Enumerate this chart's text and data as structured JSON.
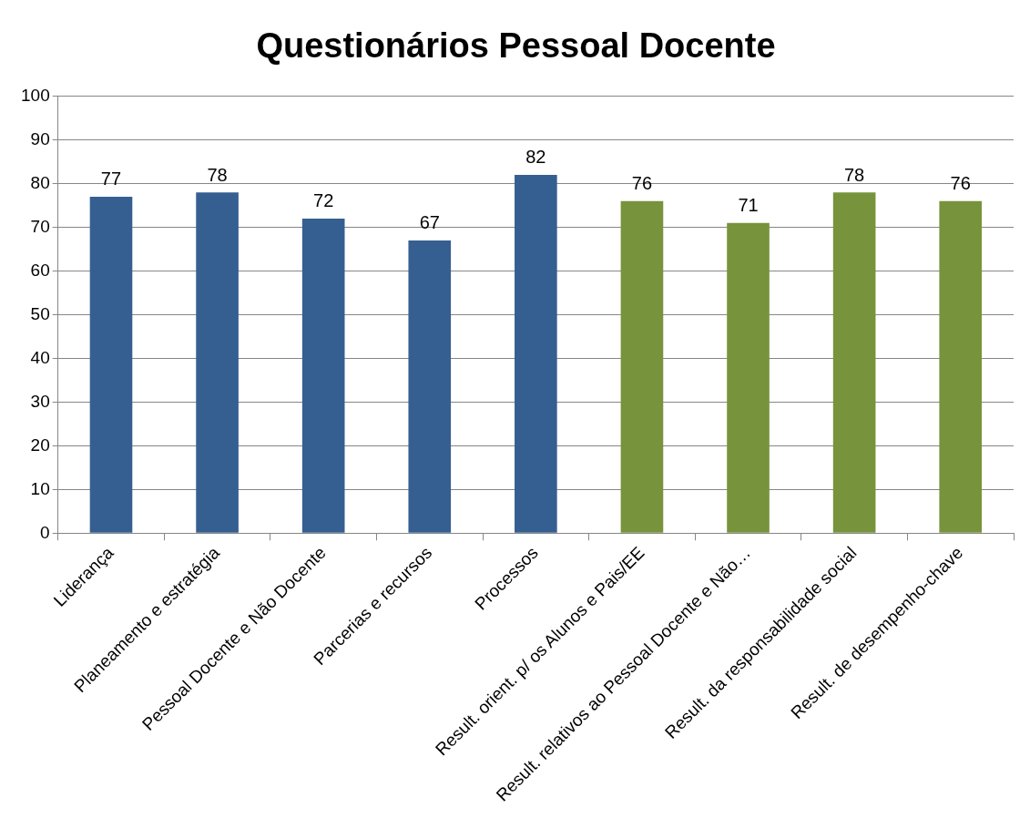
{
  "chart_data": {
    "type": "bar",
    "title": "Questionários Pessoal Docente",
    "categories": [
      "Liderança",
      "Planeamento e estratégia",
      "Pessoal Docente e Não Docente",
      "Parcerias e recursos",
      "Processos",
      "Result. orient. p/ os Alunos e Pais/EE",
      "Result. relativos ao Pessoal Docente e Não…",
      "Result. da responsabilidade social",
      "Result. de desempenho-chave"
    ],
    "values": [
      77,
      78,
      72,
      67,
      82,
      76,
      71,
      78,
      76
    ],
    "colors": [
      "#365f91",
      "#365f91",
      "#365f91",
      "#365f91",
      "#365f91",
      "#77933c",
      "#77933c",
      "#77933c",
      "#77933c"
    ],
    "ylim": [
      0,
      100
    ],
    "yticks": [
      0,
      10,
      20,
      30,
      40,
      50,
      60,
      70,
      80,
      90,
      100
    ],
    "grid": "y",
    "legend": false,
    "data_labels": true
  }
}
